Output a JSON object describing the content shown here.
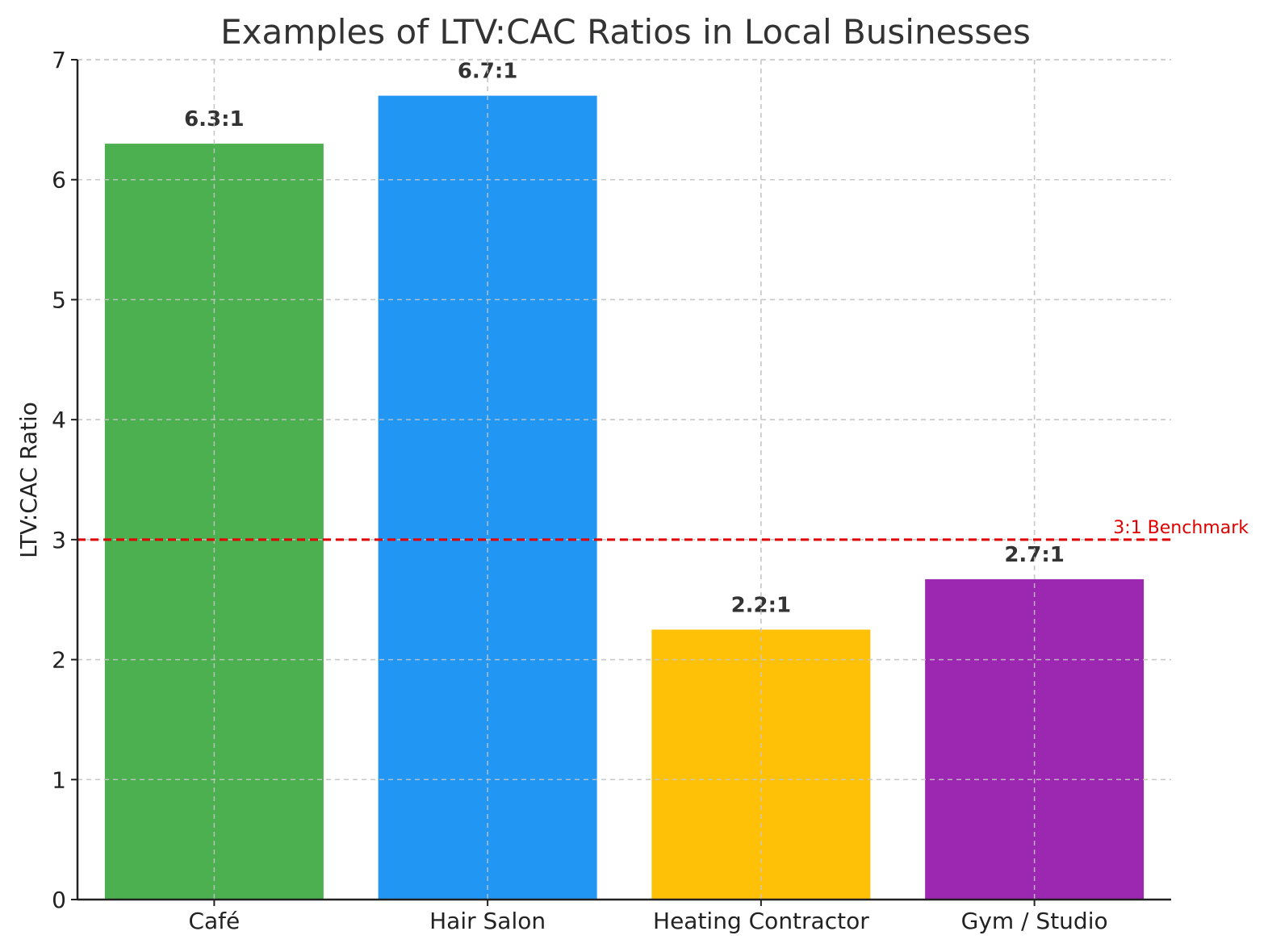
{
  "chart_data": {
    "type": "bar",
    "title": "Examples of LTV:CAC Ratios in Local Businesses",
    "xlabel": "",
    "ylabel": "LTV:CAC Ratio",
    "categories": [
      "Café",
      "Hair Salon",
      "Heating Contractor",
      "Gym / Studio"
    ],
    "values": [
      6.3,
      6.7,
      2.25,
      2.67
    ],
    "value_labels": [
      "6.3:1",
      "6.7:1",
      "2.2:1",
      "2.7:1"
    ],
    "colors": [
      "#4caf50",
      "#2196f3",
      "#ffc107",
      "#9c27b0"
    ],
    "ylim": [
      0,
      7
    ],
    "yticks": [
      0,
      1,
      2,
      3,
      4,
      5,
      6,
      7
    ],
    "grid": true,
    "reference_line": {
      "value": 3,
      "label": "3:1 Benchmark",
      "color": "#e00000",
      "style": "dashed"
    }
  }
}
